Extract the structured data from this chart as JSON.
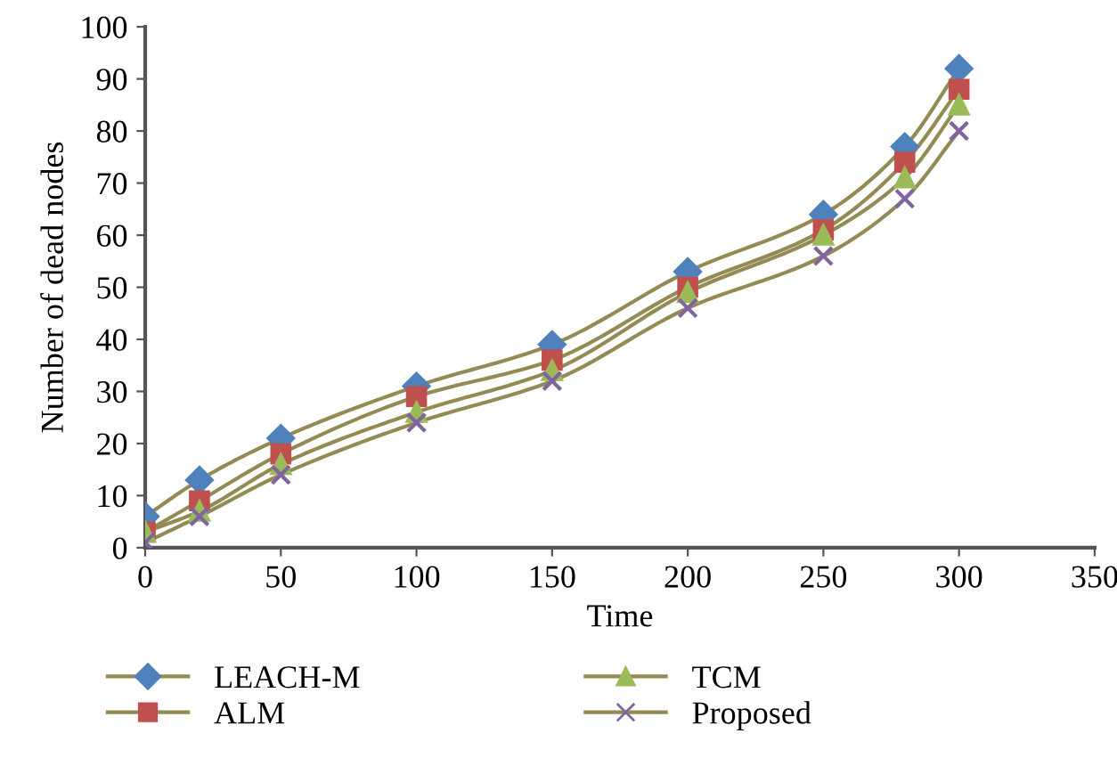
{
  "chart_data": {
    "type": "line",
    "xlabel": "Time",
    "ylabel": "Number of dead nodes",
    "x": [
      0,
      20,
      50,
      100,
      150,
      200,
      250,
      280,
      300
    ],
    "series": [
      {
        "name": "LEACH-M",
        "color": "#4f81bd",
        "marker": "diamond",
        "values": [
          6,
          13,
          21,
          31,
          39,
          53,
          64,
          77,
          92
        ]
      },
      {
        "name": "ALM",
        "color": "#c0504d",
        "marker": "square",
        "values": [
          3,
          9,
          18,
          29,
          36,
          50,
          61,
          74,
          88
        ]
      },
      {
        "name": "TCM",
        "color": "#9bbb59",
        "marker": "triangle",
        "values": [
          3,
          7,
          16,
          26,
          34,
          49,
          60,
          71,
          85
        ]
      },
      {
        "name": "Proposed",
        "color": "#8064a2",
        "marker": "cross",
        "values": [
          1,
          6,
          14,
          24,
          32,
          46,
          56,
          67,
          80
        ]
      }
    ],
    "xlim": [
      0,
      350
    ],
    "xticks": [
      0,
      50,
      100,
      150,
      200,
      250,
      300,
      350
    ],
    "ylim": [
      0,
      100
    ],
    "yticks": [
      0,
      10,
      20,
      30,
      40,
      50,
      60,
      70,
      80,
      90,
      100
    ],
    "grid": false,
    "legend": "bottom",
    "line_style": "solid"
  }
}
